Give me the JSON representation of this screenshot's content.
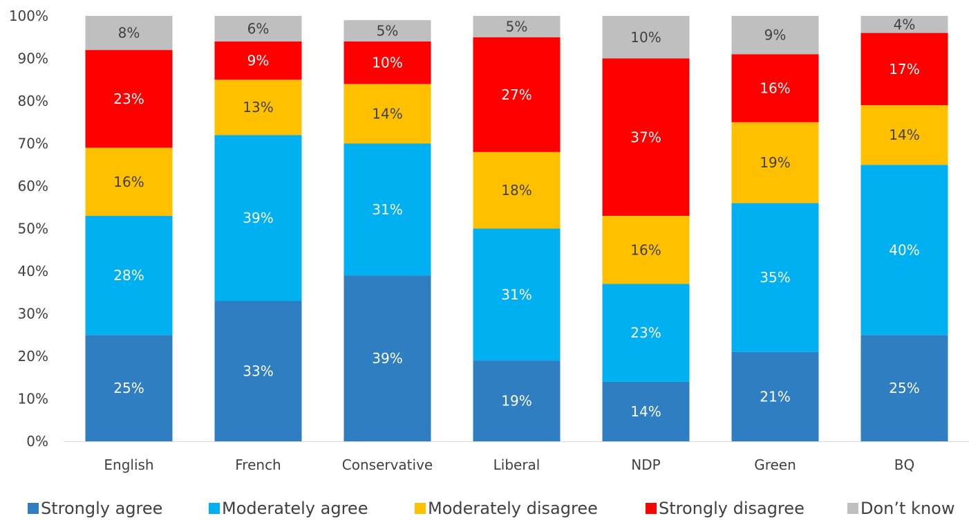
{
  "chart_data": {
    "type": "bar",
    "stacked": true,
    "categories": [
      "English",
      "French",
      "Conservative",
      "Liberal",
      "NDP",
      "Green",
      "BQ"
    ],
    "series": [
      {
        "name": "Strongly agree",
        "color": "#2E7EC1",
        "values": [
          25,
          33,
          39,
          19,
          14,
          21,
          25
        ],
        "labels": [
          "25%",
          "33%",
          "39%",
          "19%",
          "14%",
          "21%",
          "25%"
        ]
      },
      {
        "name": "Moderately agree",
        "color": "#00B0F0",
        "values": [
          28,
          39,
          31,
          31,
          23,
          35,
          40
        ],
        "labels": [
          "28%",
          "39%",
          "31%",
          "31%",
          "23%",
          "35%",
          "40%"
        ]
      },
      {
        "name": "Moderately disagree",
        "color": "#FFC000",
        "values": [
          16,
          13,
          14,
          18,
          16,
          19,
          14
        ],
        "labels": [
          "16%",
          "13%",
          "14%",
          "18%",
          "16%",
          "19%",
          "14%"
        ]
      },
      {
        "name": "Strongly disagree",
        "color": "#FF0000",
        "values": [
          23,
          9,
          10,
          27,
          37,
          16,
          17
        ],
        "labels": [
          "23%",
          "9%",
          "10%",
          "27%",
          "37%",
          "16%",
          "17%"
        ]
      },
      {
        "name": "Don’t know",
        "color": "#BFBFBF",
        "values": [
          8,
          6,
          5,
          5,
          10,
          9,
          4
        ],
        "labels": [
          "8%",
          "6%",
          "5%",
          "5%",
          "10%",
          "9%",
          "4%"
        ]
      }
    ],
    "y_ticks": [
      "0%",
      "10%",
      "20%",
      "30%",
      "40%",
      "50%",
      "60%",
      "70%",
      "80%",
      "90%",
      "100%"
    ],
    "ylim": [
      0,
      100
    ],
    "grid": false,
    "legend_position": "bottom",
    "title": "",
    "xlabel": "",
    "ylabel": ""
  }
}
